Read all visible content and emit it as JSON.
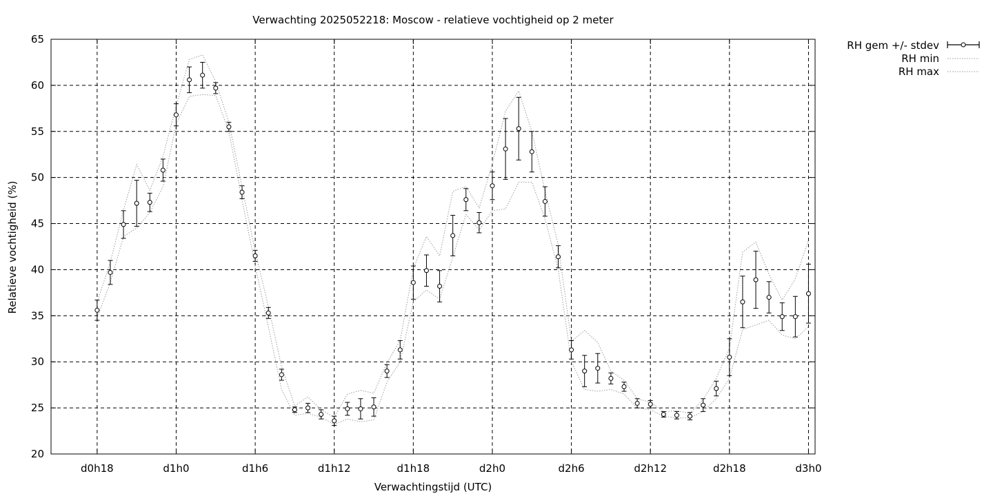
{
  "chart_data": {
    "type": "line",
    "title": "Verwachting 2025052218: Moscow - relatieve vochtigheid op 2 meter",
    "xlabel": "Verwachtingstijd (UTC)",
    "ylabel": "Relatieve vochtigheid (%)",
    "ylim": [
      20,
      65
    ],
    "yticks": [
      20,
      25,
      30,
      35,
      40,
      45,
      50,
      55,
      60,
      65
    ],
    "xlim_hours": [
      -1.75,
      27.25
    ],
    "xticks": [
      {
        "h": 0,
        "label": "d0h18"
      },
      {
        "h": 3,
        "label": "d1h0"
      },
      {
        "h": 6,
        "label": "d1h6"
      },
      {
        "h": 9,
        "label": "d1h12"
      },
      {
        "h": 12,
        "label": "d1h18"
      },
      {
        "h": 15,
        "label": "d2h0"
      },
      {
        "h": 18,
        "label": "d2h6"
      },
      {
        "h": 21,
        "label": "d2h12"
      },
      {
        "h": 24,
        "label": "d2h18"
      },
      {
        "h": 27,
        "label": "d3h0"
      }
    ],
    "grid": true,
    "legend_position": "top-right outside",
    "legend": [
      "RH gem +/- stdev",
      "RH min",
      "RH max"
    ],
    "series": [
      {
        "name": "RH gem +/- stdev",
        "style": "points with error bars",
        "x": [
          0,
          0.5,
          1,
          1.5,
          2,
          2.5,
          3,
          3.5,
          4,
          4.5,
          5,
          5.5,
          6,
          6.5,
          7,
          7.5,
          8,
          8.5,
          9,
          9.5,
          10,
          10.5,
          11,
          11.5,
          12,
          12.5,
          13,
          13.5,
          14,
          14.5,
          15,
          15.5,
          16,
          16.5,
          17,
          17.5,
          18,
          18.5,
          19,
          19.5,
          20,
          20.5,
          21,
          21.5,
          22,
          22.5,
          23,
          23.5,
          24,
          24.5,
          25,
          25.5,
          26,
          26.5,
          27
        ],
        "values": [
          35.6,
          39.7,
          44.9,
          47.2,
          47.3,
          50.8,
          56.8,
          60.6,
          61.1,
          59.7,
          55.5,
          48.4,
          41.5,
          35.3,
          28.6,
          24.8,
          25.0,
          24.3,
          23.6,
          24.9,
          24.9,
          25.1,
          29.0,
          31.3,
          38.6,
          39.9,
          38.2,
          43.7,
          47.6,
          45.1,
          49.1,
          53.1,
          55.3,
          52.8,
          47.4,
          41.4,
          31.3,
          29.0,
          29.3,
          28.2,
          27.3,
          25.5,
          25.4,
          24.3,
          24.2,
          24.1,
          25.3,
          27.1,
          30.5,
          36.5,
          38.9,
          37.0,
          34.9,
          34.9,
          37.4
        ],
        "stdev": [
          1.1,
          1.3,
          1.5,
          2.5,
          1.0,
          1.2,
          1.2,
          1.4,
          1.4,
          0.6,
          0.5,
          0.7,
          0.6,
          0.6,
          0.6,
          0.3,
          0.5,
          0.5,
          0.5,
          0.7,
          1.1,
          1.0,
          0.7,
          1.0,
          1.8,
          1.7,
          1.7,
          2.2,
          1.2,
          1.1,
          1.5,
          3.3,
          3.4,
          2.2,
          1.6,
          1.2,
          1.0,
          1.7,
          1.6,
          0.6,
          0.5,
          0.5,
          0.4,
          0.3,
          0.4,
          0.4,
          0.7,
          0.8,
          2.0,
          2.8,
          3.1,
          1.7,
          1.5,
          2.2,
          3.2
        ]
      },
      {
        "name": "RH min",
        "style": "dotted line",
        "x": [
          0,
          0.5,
          1,
          1.5,
          2,
          2.5,
          3,
          3.5,
          4,
          4.5,
          5,
          5.5,
          6,
          6.5,
          7,
          7.5,
          8,
          8.5,
          9,
          9.5,
          10,
          10.5,
          11,
          11.5,
          12,
          12.5,
          13,
          13.5,
          14,
          14.5,
          15,
          15.5,
          16,
          16.5,
          17,
          17.5,
          18,
          18.5,
          19,
          19.5,
          20,
          20.5,
          21,
          21.5,
          22,
          22.5,
          23,
          23.5,
          24,
          24.5,
          25,
          25.5,
          26,
          26.5,
          27
        ],
        "values": [
          34.8,
          38.6,
          43.6,
          44.5,
          46.2,
          49.0,
          55.8,
          58.8,
          59.0,
          58.9,
          55.0,
          47.6,
          40.4,
          33.8,
          27.0,
          24.2,
          24.4,
          24.0,
          23.2,
          23.8,
          23.5,
          23.7,
          27.8,
          30.0,
          36.5,
          37.8,
          36.8,
          41.4,
          46.0,
          44.3,
          46.4,
          46.6,
          49.5,
          49.5,
          45.5,
          40.0,
          30.0,
          27.0,
          26.8,
          27.0,
          26.5,
          25.0,
          24.8,
          24.1,
          23.9,
          23.9,
          24.6,
          26.0,
          28.2,
          33.5,
          34.0,
          34.5,
          32.9,
          32.5,
          33.8
        ]
      },
      {
        "name": "RH max",
        "style": "dotted line",
        "x": [
          0,
          0.5,
          1,
          1.5,
          2,
          2.5,
          3,
          3.5,
          4,
          4.5,
          5,
          5.5,
          6,
          6.5,
          7,
          7.5,
          8,
          8.5,
          9,
          9.5,
          10,
          10.5,
          11,
          11.5,
          12,
          12.5,
          13,
          13.5,
          14,
          14.5,
          15,
          15.5,
          16,
          16.5,
          17,
          17.5,
          18,
          18.5,
          19,
          19.5,
          20,
          20.5,
          21,
          21.5,
          22,
          22.5,
          23,
          23.5,
          24,
          24.5,
          25,
          25.5,
          26,
          26.5,
          27
        ],
        "values": [
          36.5,
          40.8,
          46.5,
          51.4,
          48.6,
          52.3,
          57.8,
          62.8,
          63.3,
          60.4,
          56.0,
          49.0,
          42.0,
          36.0,
          29.5,
          25.2,
          26.2,
          24.8,
          24.0,
          26.5,
          26.9,
          26.6,
          29.9,
          32.3,
          40.1,
          43.6,
          41.5,
          48.5,
          49.0,
          46.7,
          51.5,
          57.2,
          59.4,
          55.0,
          48.5,
          42.7,
          32.2,
          33.4,
          32.1,
          29.0,
          28.0,
          26.0,
          25.6,
          24.6,
          24.7,
          24.4,
          25.9,
          28.2,
          31.5,
          41.9,
          43.0,
          39.5,
          36.7,
          39.0,
          43.2
        ]
      }
    ]
  }
}
